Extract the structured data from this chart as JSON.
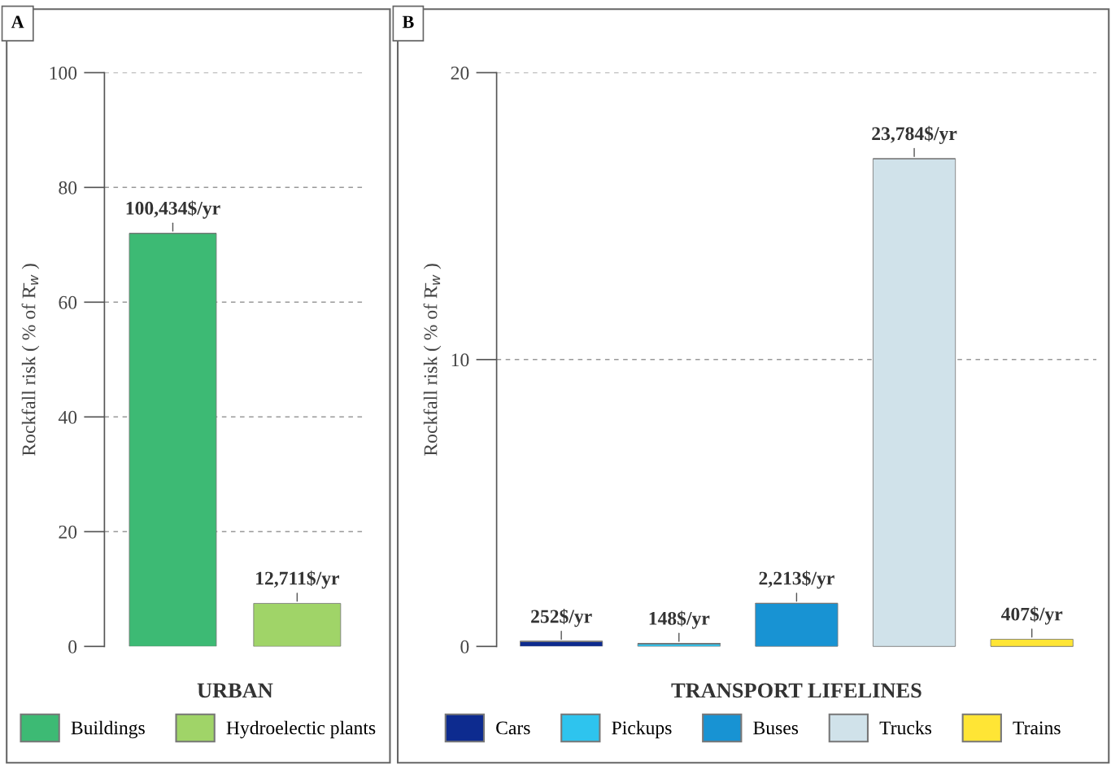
{
  "chart_data": [
    {
      "type": "bar",
      "title": "A",
      "xlabel": "URBAN",
      "ylabel": "Rockfall risk ( % of R̄$_{w}$ )",
      "categories": [
        null,
        null
      ],
      "series": [
        {
          "name": "Buildings",
          "color": "#3dba74",
          "values": [
            72,
            null
          ]
        },
        {
          "name": "Hydroelectic plants",
          "color": "#a0d468",
          "values": [
            null,
            7.5
          ]
        }
      ],
      "annotations": [
        {
          "text": "100,434$/yr",
          "y": 72
        },
        {
          "text": "12,711$/yr",
          "y": 7.5
        }
      ],
      "stacked": true,
      "ylim": [
        0,
        100
      ],
      "yticks": [
        0,
        20,
        40,
        60,
        80,
        100
      ],
      "grid": "y",
      "legend": "bottom"
    },
    {
      "type": "bar",
      "title": "B",
      "xlabel": "TRANSPORT LIFELINES",
      "ylabel": "Rockfall risk ( % of R̄$_{w}$ )",
      "categories": [
        null,
        null,
        null,
        null,
        null
      ],
      "series": [
        {
          "name": "Cars",
          "color": "#0d2b8f",
          "values": [
            0.17,
            null,
            null,
            null,
            null
          ]
        },
        {
          "name": "Pickups",
          "color": "#2ec4ee",
          "values": [
            null,
            0.1,
            null,
            null,
            null
          ]
        },
        {
          "name": "Buses",
          "color": "#1893d3",
          "values": [
            null,
            null,
            1.5,
            null,
            null
          ]
        },
        {
          "name": "Trucks",
          "color": "#d0e2ea",
          "values": [
            null,
            null,
            null,
            17,
            null
          ]
        },
        {
          "name": "Trains",
          "color": "#ffe535",
          "values": [
            null,
            null,
            null,
            null,
            0.25
          ]
        }
      ],
      "annotations": [
        {
          "text": "252$/yr",
          "y": 0.17
        },
        {
          "text": "148$/yr",
          "y": 0.1
        },
        {
          "text": "2,213$/yr",
          "y": 1.5
        },
        {
          "text": "23,784$/yr",
          "y": 17
        },
        {
          "text": "407$/yr",
          "y": 0.25
        }
      ],
      "stacked": true,
      "ylim": [
        0,
        20
      ],
      "yticks": [
        0,
        10,
        20
      ],
      "grid": "y",
      "legend": "bottom"
    }
  ]
}
